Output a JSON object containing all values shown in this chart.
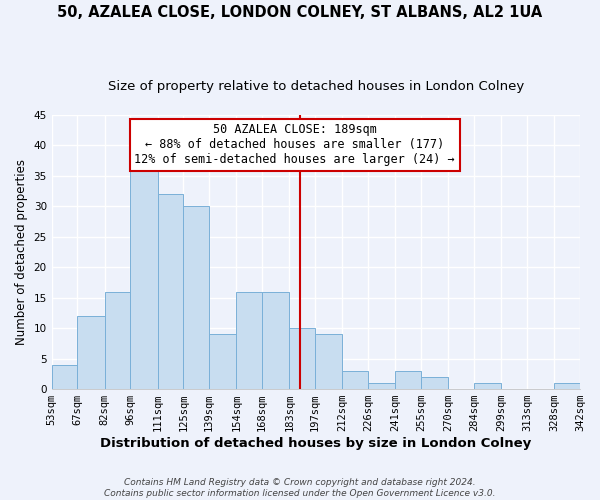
{
  "title": "50, AZALEA CLOSE, LONDON COLNEY, ST ALBANS, AL2 1UA",
  "subtitle": "Size of property relative to detached houses in London Colney",
  "xlabel": "Distribution of detached houses by size in London Colney",
  "ylabel": "Number of detached properties",
  "bar_color": "#c8ddf0",
  "bar_edge_color": "#7ab0d8",
  "bin_labels": [
    "53sqm",
    "67sqm",
    "82sqm",
    "96sqm",
    "111sqm",
    "125sqm",
    "139sqm",
    "154sqm",
    "168sqm",
    "183sqm",
    "197sqm",
    "212sqm",
    "226sqm",
    "241sqm",
    "255sqm",
    "270sqm",
    "284sqm",
    "299sqm",
    "313sqm",
    "328sqm",
    "342sqm"
  ],
  "bin_edges": [
    53,
    67,
    82,
    96,
    111,
    125,
    139,
    154,
    168,
    183,
    197,
    212,
    226,
    241,
    255,
    270,
    284,
    299,
    313,
    328,
    342
  ],
  "bar_heights": [
    4,
    12,
    16,
    36,
    32,
    30,
    9,
    16,
    16,
    10,
    9,
    3,
    1,
    3,
    2,
    0,
    1,
    0,
    0,
    1
  ],
  "vline_x": 189,
  "vline_color": "#cc0000",
  "ylim": [
    0,
    45
  ],
  "annotation_title": "50 AZALEA CLOSE: 189sqm",
  "annotation_line1": "← 88% of detached houses are smaller (177)",
  "annotation_line2": "12% of semi-detached houses are larger (24) →",
  "annotation_box_color": "#ffffff",
  "annotation_box_edge_color": "#cc0000",
  "footer_line1": "Contains HM Land Registry data © Crown copyright and database right 2024.",
  "footer_line2": "Contains public sector information licensed under the Open Government Licence v3.0.",
  "background_color": "#eef2fb",
  "grid_color": "#ffffff",
  "title_fontsize": 10.5,
  "subtitle_fontsize": 9.5,
  "xlabel_fontsize": 9.5,
  "ylabel_fontsize": 8.5,
  "tick_fontsize": 7.5,
  "annotation_fontsize": 8.5,
  "footer_fontsize": 6.5
}
